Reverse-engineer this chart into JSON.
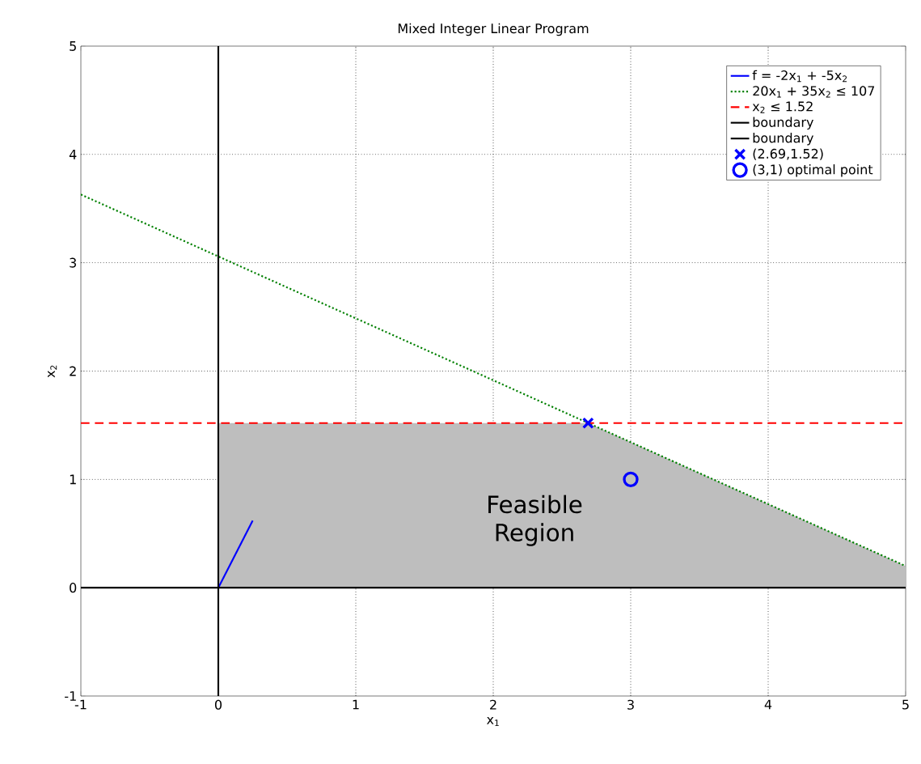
{
  "chart_data": {
    "type": "line",
    "title": "Mixed Integer Linear Program",
    "xlabel": "x$_{1}$",
    "ylabel": "x$_{2}$",
    "xlim": [
      -1,
      5
    ],
    "ylim": [
      -1,
      5
    ],
    "xticks": [
      -1,
      0,
      1,
      2,
      3,
      4,
      5
    ],
    "yticks": [
      -1,
      0,
      1,
      2,
      3,
      4,
      5
    ],
    "grid": true,
    "legend": "top right",
    "annotations": [
      "Feasible Region"
    ],
    "series": [
      {
        "type": "area",
        "color": "#bebebe",
        "x": [
          0,
          2.69,
          5
        ],
        "values": [
          1.52,
          1.52,
          0.2
        ]
      },
      {
        "name": "f = -2x$_{1}$ + -5x$_{2}$",
        "color": "#0000ff",
        "x": [
          0,
          0.25
        ],
        "values": [
          0,
          0.62
        ],
        "line_style": "solid"
      },
      {
        "name": "20x$_{1}$ + 35x$_{2}$ ≤ 107",
        "color": "#008000",
        "x": [
          -1,
          5
        ],
        "values": [
          3.63,
          0.2
        ],
        "line_style": "dotted"
      },
      {
        "name": "x$_{2}$ ≤ 1.52",
        "color": "#ff0000",
        "x": [
          -1,
          5
        ],
        "values": [
          1.52,
          1.52
        ],
        "line_style": "dashed"
      },
      {
        "name": "boundary",
        "color": "#000000",
        "x": [
          0,
          0
        ],
        "values": [
          -1,
          5
        ],
        "line_style": "solid"
      },
      {
        "name": "boundary",
        "color": "#000000",
        "x": [
          -1,
          5
        ],
        "values": [
          0,
          0
        ],
        "line_style": "solid"
      },
      {
        "type": "scatter",
        "name": "(2.69,1.52)",
        "color": "#0000ff",
        "x": [
          2.69
        ],
        "values": [
          1.52
        ],
        "marker": "cross"
      },
      {
        "type": "scatter",
        "name": "(3,1) optimal point",
        "color": "#0000ff",
        "x": [
          3
        ],
        "values": [
          1
        ],
        "marker": "circle"
      }
    ]
  }
}
